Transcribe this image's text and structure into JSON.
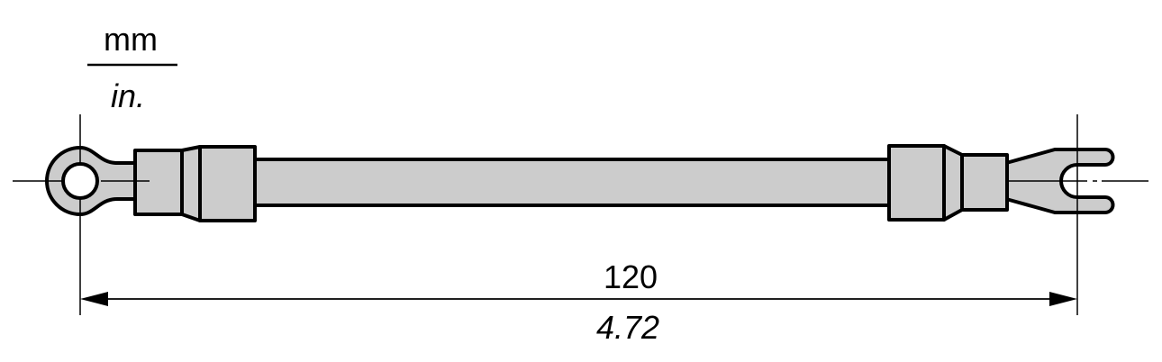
{
  "units": {
    "primary": "mm",
    "secondary": "in."
  },
  "dimension": {
    "mm": "120",
    "in": "4.72"
  },
  "colors": {
    "part_fill": "#cccccc",
    "stroke": "#000000"
  },
  "parts": {
    "left_terminal": "ring-terminal",
    "right_terminal": "fork-terminal"
  }
}
